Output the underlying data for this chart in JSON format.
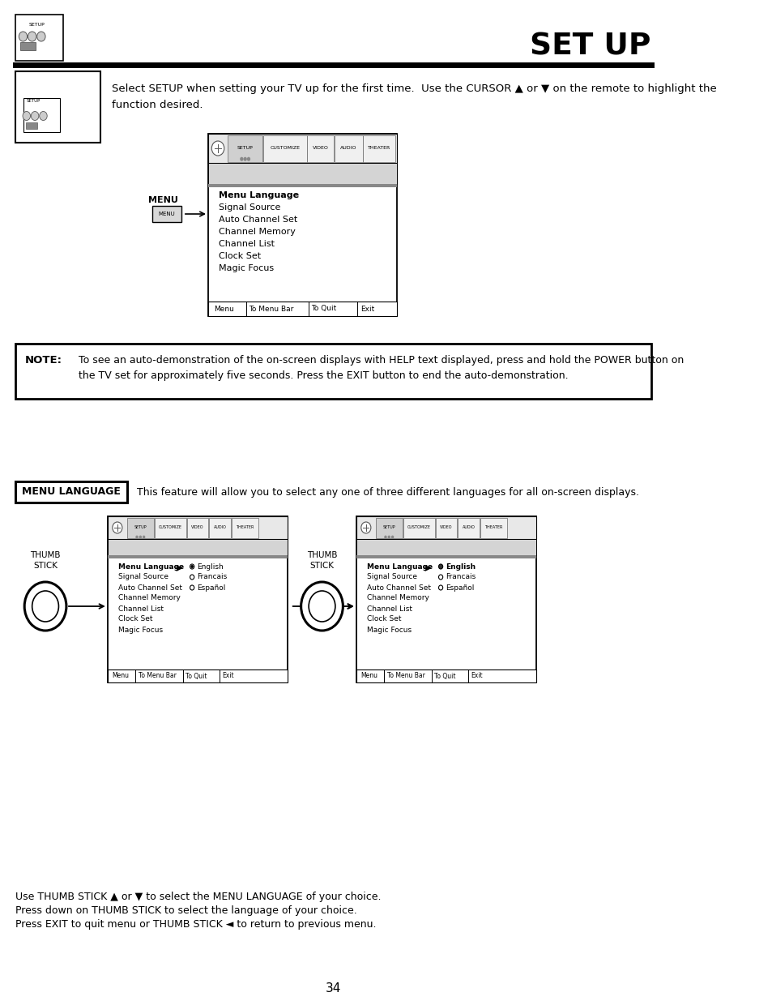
{
  "title": "SET UP",
  "header_text": "Select SETUP when setting your TV up for the first time.  Use the CURSOR ▲ or ▼ on the remote to highlight the\nfunction desired.",
  "note_label": "NOTE:",
  "note_text": "To see an auto-demonstration of the on-screen displays with HELP text displayed, press and hold the POWER button on\nthe TV set for approximately five seconds. Press the EXIT button to end the auto-demonstration.",
  "menu_language_label": "MENU LANGUAGE",
  "menu_language_text": "This feature will allow you to select any one of three different languages for all on-screen displays.",
  "bottom_text_line1": "Use THUMB STICK ▲ or ▼ to select the MENU LANGUAGE of your choice.",
  "bottom_text_line2": "Press down on THUMB STICK to select the language of your choice.",
  "bottom_text_line3": "Press EXIT to quit menu or THUMB STICK ◄ to return to previous menu.",
  "page_number": "34",
  "menu_items": [
    "Menu Language",
    "Signal Source",
    "Auto Channel Set",
    "Channel Memory",
    "Channel List",
    "Clock Set",
    "Magic Focus"
  ],
  "language_options": [
    "English",
    "Francais",
    "Español"
  ],
  "bottom_bar": [
    "Menu",
    "To Menu Bar",
    "To Quit",
    "Exit"
  ],
  "tab_labels": [
    "SETUP",
    "CUSTOMIZE",
    "VIDEO",
    "AUDIO",
    "THEATER"
  ],
  "bg_color": "#ffffff",
  "text_color": "#000000",
  "border_color": "#000000"
}
